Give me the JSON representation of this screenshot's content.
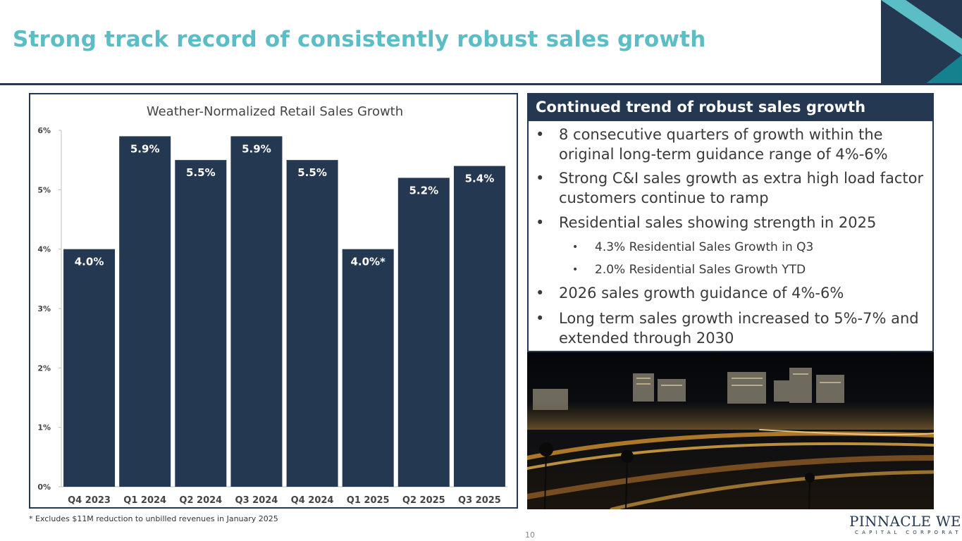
{
  "slide": {
    "title": "Strong track record of consistently robust sales growth",
    "footnote": "* Excludes $11M reduction to unbilled revenues in January 2025",
    "page_number": "10"
  },
  "panel": {
    "header": "Continued trend of robust sales growth",
    "bullets": [
      {
        "level": 1,
        "text": "8 consecutive quarters of growth within the original long-term guidance range of 4%-6%"
      },
      {
        "level": 1,
        "text": "Strong C&I sales growth as extra high load factor customers continue to ramp"
      },
      {
        "level": 1,
        "text": "Residential sales showing strength in 2025"
      },
      {
        "level": 2,
        "text": "4.3% Residential Sales Growth in Q3"
      },
      {
        "level": 2,
        "text": "2.0% Residential Sales Growth YTD"
      },
      {
        "level": 1,
        "text": "2026 sales growth guidance of 4%-6%"
      },
      {
        "level": 1,
        "text": "Long term sales growth increased to 5%-7% and extended through 2030"
      }
    ]
  },
  "logo": {
    "name": "PINNACLE WEST",
    "sub": "CAPITAL CORPORATION"
  },
  "colors": {
    "accent": "#5bbdc5",
    "navy": "#243851",
    "teal_dark": "#14828e"
  },
  "chart_data": {
    "type": "bar",
    "title": "Weather-Normalized Retail Sales Growth",
    "categories": [
      "Q4 2023",
      "Q1 2024",
      "Q2 2024",
      "Q3 2024",
      "Q4 2024",
      "Q1 2025",
      "Q2 2025",
      "Q3 2025"
    ],
    "values": [
      4.0,
      5.9,
      5.5,
      5.9,
      5.5,
      4.0,
      5.2,
      5.4
    ],
    "data_labels": [
      "4.0%",
      "5.9%",
      "5.5%",
      "5.9%",
      "5.5%",
      "4.0%*",
      "5.2%",
      "5.4%"
    ],
    "y_ticks": [
      "0%",
      "1%",
      "2%",
      "3%",
      "4%",
      "5%",
      "6%"
    ],
    "ylim": [
      0,
      6
    ],
    "xlabel": "",
    "ylabel": "",
    "grid": false
  }
}
